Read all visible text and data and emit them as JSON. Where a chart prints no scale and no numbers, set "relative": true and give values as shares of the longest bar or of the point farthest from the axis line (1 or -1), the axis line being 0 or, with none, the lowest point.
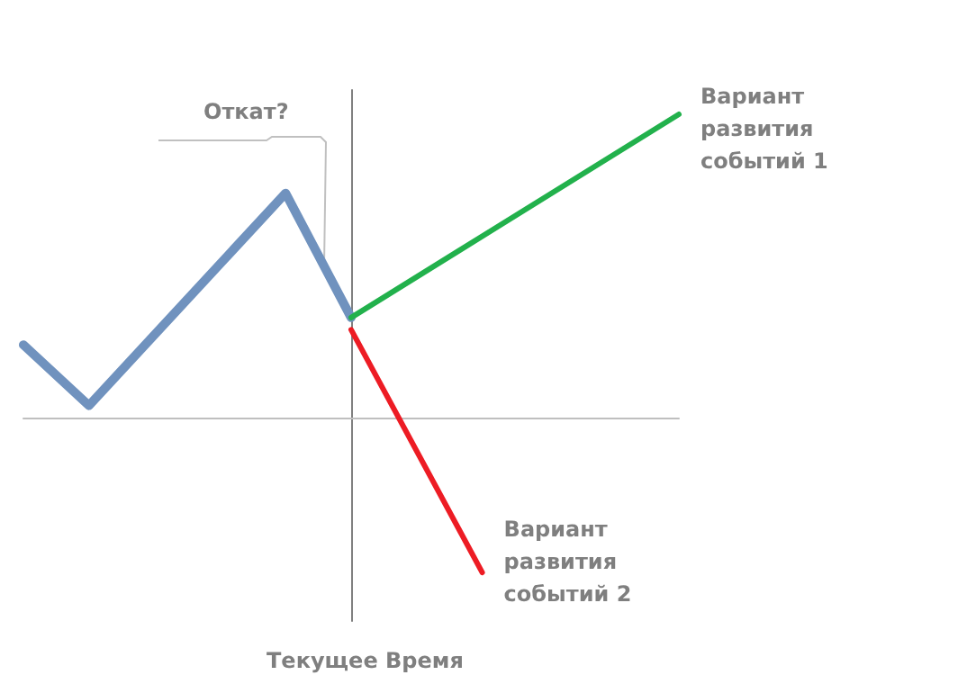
{
  "chart_data": {
    "type": "line",
    "relative": true,
    "marker": "none",
    "annotations": [
      "Откат?",
      "Текущее Время"
    ],
    "categories": [
      null,
      null,
      null,
      null,
      null,
      null,
      null,
      null,
      null,
      null,
      null
    ],
    "series": [
      {
        "color": "#7092be",
        "values": [
          0.24,
          0.04,
          null,
          null,
          0.74,
          0.33,
          null,
          null,
          null,
          null,
          null
        ]
      },
      {
        "name": "Вариант развития событий 1",
        "color": "#22b14c",
        "values": [
          null,
          null,
          null,
          null,
          null,
          0.33,
          null,
          null,
          null,
          null,
          1
        ]
      },
      {
        "name": "Вариант развития событий 2",
        "color": "#ed1c24",
        "values": [
          null,
          null,
          null,
          null,
          null,
          0.29,
          null,
          -0.51,
          null,
          null,
          null
        ]
      }
    ]
  }
}
